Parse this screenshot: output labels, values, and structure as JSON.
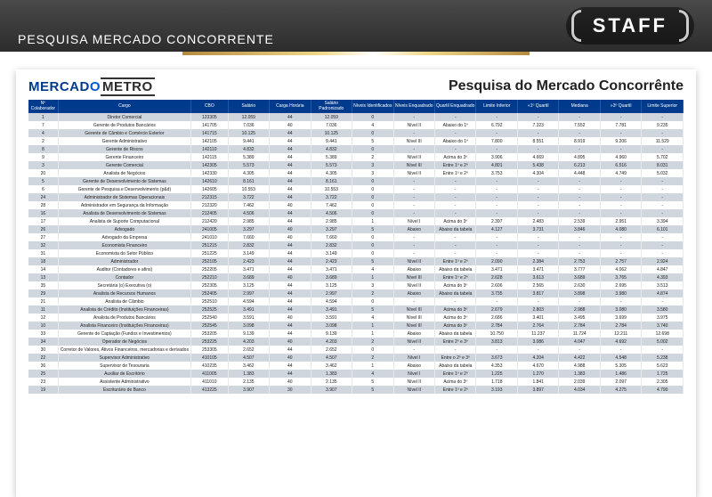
{
  "header": {
    "title": "PESQUISA MERCADO CONCORRENTE",
    "badge": "STAFF"
  },
  "logo": {
    "part1": "MERCAD",
    "o": "O",
    "part2": "METRO"
  },
  "report_title": "Pesquisa do Mercado Concorrênte",
  "columns": [
    "Nº Colaborador",
    "Cargo",
    "CBO",
    "Salário",
    "Carga Horária",
    "Salário Padronizado",
    "Níveis Identificados",
    "Níveis Enquadrado",
    "Quartil Enquadrado",
    "Limite Inferior",
    "«1º Quartil",
    "Mediana",
    "»3º Quartil",
    "Limite Superior"
  ],
  "rows": [
    [
      "1",
      "Diretor Comercial",
      "123305",
      "12.059",
      "44",
      "12.059",
      "0",
      "-",
      "-",
      "-",
      "-",
      "-",
      "-",
      "-"
    ],
    [
      "7",
      "Gerente de Produtos Bancários",
      "141705",
      "7.036",
      "40",
      "7.036",
      "4",
      "Nível II",
      "Abaixo do 1º",
      "6.792",
      "7.323",
      "7.552",
      "7.781",
      "9.235"
    ],
    [
      "4",
      "Gerente de Câmbio e Comércio Exterior",
      "141715",
      "10.125",
      "44",
      "10.125",
      "0",
      "-",
      "-",
      "-",
      "-",
      "-",
      "-",
      "-"
    ],
    [
      "2",
      "Gerente Administrativo",
      "142105",
      "9.441",
      "44",
      "9.441",
      "5",
      "Nível III",
      "Abaixo do 1º",
      "7.800",
      "8.551",
      "8.919",
      "9.206",
      "11.529"
    ],
    [
      "8",
      "Gerente de Riscos",
      "142110",
      "4.832",
      "44",
      "4.832",
      "0",
      "-",
      "-",
      "-",
      "-",
      "-",
      "-",
      "-"
    ],
    [
      "9",
      "Gerente Financeiro",
      "142115",
      "5.389",
      "44",
      "5.389",
      "2",
      "Nível II",
      "Acima do 3º",
      "3.906",
      "4.669",
      "4.895",
      "4.960",
      "5.702"
    ],
    [
      "3",
      "Gerente Comercial",
      "142305",
      "5.573",
      "44",
      "5.573",
      "3",
      "Nível III",
      "Entre 1º e 2º",
      "4.801",
      "5.438",
      "6.213",
      "6.516",
      "8.031"
    ],
    [
      "20",
      "Analista de Negócios",
      "142330",
      "4.305",
      "44",
      "4.305",
      "3",
      "Nível II",
      "Entre 1º e 2º",
      "3.753",
      "4.304",
      "4.448",
      "4.749",
      "5.032"
    ],
    [
      "5",
      "Gerente de Desenvolvimento de Sistemas",
      "142610",
      "8.161",
      "44",
      "8.161",
      "0",
      "-",
      "-",
      "-",
      "-",
      "-",
      "-",
      "-"
    ],
    [
      "6",
      "Gerente de Pesquisa e Desenvolvimento (p&d)",
      "142605",
      "10.553",
      "44",
      "10.553",
      "0",
      "-",
      "-",
      "-",
      "-",
      "-",
      "-",
      "-"
    ],
    [
      "24",
      "Administrador de Sistemas Operacionais",
      "212315",
      "3.722",
      "44",
      "3.722",
      "0",
      "-",
      "-",
      "-",
      "-",
      "-",
      "-",
      "-"
    ],
    [
      "28",
      "Administrador em Segurança da Informação",
      "212320",
      "7.462",
      "40",
      "7.462",
      "0",
      "-",
      "-",
      "-",
      "-",
      "-",
      "-",
      "-"
    ],
    [
      "16",
      "Analista de Desenvolvimento de Sistemas",
      "212405",
      "4.506",
      "44",
      "4.506",
      "0",
      "-",
      "-",
      "-",
      "-",
      "-",
      "-",
      "-"
    ],
    [
      "17",
      "Analista de Suporte Computacional",
      "212420",
      "2.985",
      "44",
      "2.985",
      "1",
      "Nível I",
      "Acima do 3º",
      "2.397",
      "2.483",
      "2.539",
      "2.951",
      "3.394"
    ],
    [
      "26",
      "Advogado",
      "241005",
      "3.297",
      "40",
      "3.297",
      "5",
      "Abaixo",
      "Abaixo da tabela",
      "4.127",
      "3.731",
      "3.846",
      "4.080",
      "6.101"
    ],
    [
      "27",
      "Advogado da Empresa",
      "241010",
      "7.660",
      "40",
      "7.660",
      "0",
      "-",
      "-",
      "-",
      "-",
      "-",
      "-",
      "-"
    ],
    [
      "32",
      "Economista Financeiro",
      "251215",
      "2.832",
      "44",
      "2.832",
      "0",
      "-",
      "-",
      "-",
      "-",
      "-",
      "-",
      "-"
    ],
    [
      "31",
      "Economista do Setor Público",
      "251225",
      "3.149",
      "44",
      "3.149",
      "0",
      "-",
      "-",
      "-",
      "-",
      "-",
      "-",
      "-"
    ],
    [
      "18",
      "Administrador",
      "252105",
      "2.423",
      "44",
      "2.423",
      "5",
      "Nível II",
      "Entre 1º e 2º",
      "2.090",
      "2.384",
      "2.753",
      "2.757",
      "2.924"
    ],
    [
      "14",
      "Auditor (Contadores e afins)",
      "252205",
      "3.471",
      "44",
      "3.471",
      "4",
      "Abaixo",
      "Abaixo da tabela",
      "3.471",
      "3.471",
      "3.777",
      "4.062",
      "4.847"
    ],
    [
      "13",
      "Contador",
      "252210",
      "3.689",
      "40",
      "3.689",
      "1",
      "Nível III",
      "Entre 1º e 2º",
      "2.628",
      "3.613",
      "3.689",
      "3.765",
      "4.393"
    ],
    [
      "35",
      "Secretária (o) Executiva (o)",
      "252305",
      "3.125",
      "44",
      "3.125",
      "3",
      "Nível II",
      "Acima do 3º",
      "2.606",
      "2.565",
      "2.630",
      "2.695",
      "3.513"
    ],
    [
      "29",
      "Analista de Recursos Humanos",
      "252405",
      "2.997",
      "44",
      "2.997",
      "2",
      "Abaixo",
      "Abaixo da tabela",
      "3.735",
      "3.817",
      "3.898",
      "3.980",
      "4.874"
    ],
    [
      "21",
      "Analista de Câmbio",
      "252510",
      "4.594",
      "44",
      "4.594",
      "0",
      "-",
      "-",
      "-",
      "-",
      "-",
      "-",
      "-"
    ],
    [
      "11",
      "Analista de Crédito (Instituições Financeiras)",
      "252525",
      "3.491",
      "44",
      "3.491",
      "5",
      "Nível III",
      "Acima do 3º",
      "2.679",
      "2.803",
      "2.988",
      "3.080",
      "3.580"
    ],
    [
      "12",
      "Analista de Produtos Bancários",
      "252540",
      "3.591",
      "40",
      "3.591",
      "4",
      "Nível III",
      "Acima do 3º",
      "2.686",
      "3.401",
      "3.495",
      "3.699",
      "3.975"
    ],
    [
      "10",
      "Analista Financeiro (Instituições Financeiras)",
      "252545",
      "3.098",
      "44",
      "3.098",
      "1",
      "Nível III",
      "Acima do 3º",
      "2.784",
      "2.764",
      "2.784",
      "2.784",
      "3.740"
    ],
    [
      "33",
      "Gerente de Captação (Fundos e Investimentos)",
      "253205",
      "9.139",
      "44",
      "9.139",
      "1",
      "Abaixo",
      "Abaixo da tabela",
      "10.750",
      "11.237",
      "11.724",
      "12.211",
      "12.698"
    ],
    [
      "34",
      "Operador de Negócios",
      "253225",
      "4.203",
      "40",
      "4.203",
      "2",
      "Nível II",
      "Entre 2º e 3º",
      "3.813",
      "3.086",
      "4.047",
      "4.692",
      "5.002"
    ],
    [
      "30",
      "Corretor de Valores, Ativos Financeiros, mercadorias e derivados",
      "253305",
      "2.652",
      "44",
      "2.652",
      "0",
      "-",
      "-",
      "-",
      "-",
      "-",
      "-",
      "-"
    ],
    [
      "22",
      "Supervisor Administrativo",
      "410105",
      "4.507",
      "40",
      "4.507",
      "2",
      "Nível I",
      "Entre o 2º e 3º",
      "3.673",
      "4.204",
      "4.422",
      "4.548",
      "5.238"
    ],
    [
      "36",
      "Supervisor de Tesouraria",
      "410235",
      "3.462",
      "44",
      "3.462",
      "1",
      "Abaixo",
      "Abaixo da tabela",
      "4.353",
      "4.670",
      "4.988",
      "5.305",
      "5.623"
    ],
    [
      "25",
      "Auxiliar de Escritório",
      "411005",
      "1.383",
      "44",
      "1.383",
      "4",
      "Nível I",
      "Entre 1º e 2º",
      "1.225",
      "1.270",
      "1.383",
      "1.486",
      "1.725"
    ],
    [
      "23",
      "Assistente Administrativo",
      "411010",
      "2.135",
      "40",
      "2.135",
      "5",
      "Nível II",
      "Acima do 3º",
      "1.718",
      "1.841",
      "2.039",
      "2.097",
      "2.305"
    ],
    [
      "19",
      "Escriturário de Banco",
      "413225",
      "3.907",
      "30",
      "3.907",
      "5",
      "Nível II",
      "Entre 1º e 2º",
      "3.193",
      "3.897",
      "4.034",
      "4.275",
      "4.790"
    ]
  ],
  "colors": {
    "header_bg": "#003a8c",
    "row_even": "#d0d6dd",
    "row_odd": "#ffffff",
    "page_header": "#2c2c2c",
    "gold": "#d8b55a"
  }
}
